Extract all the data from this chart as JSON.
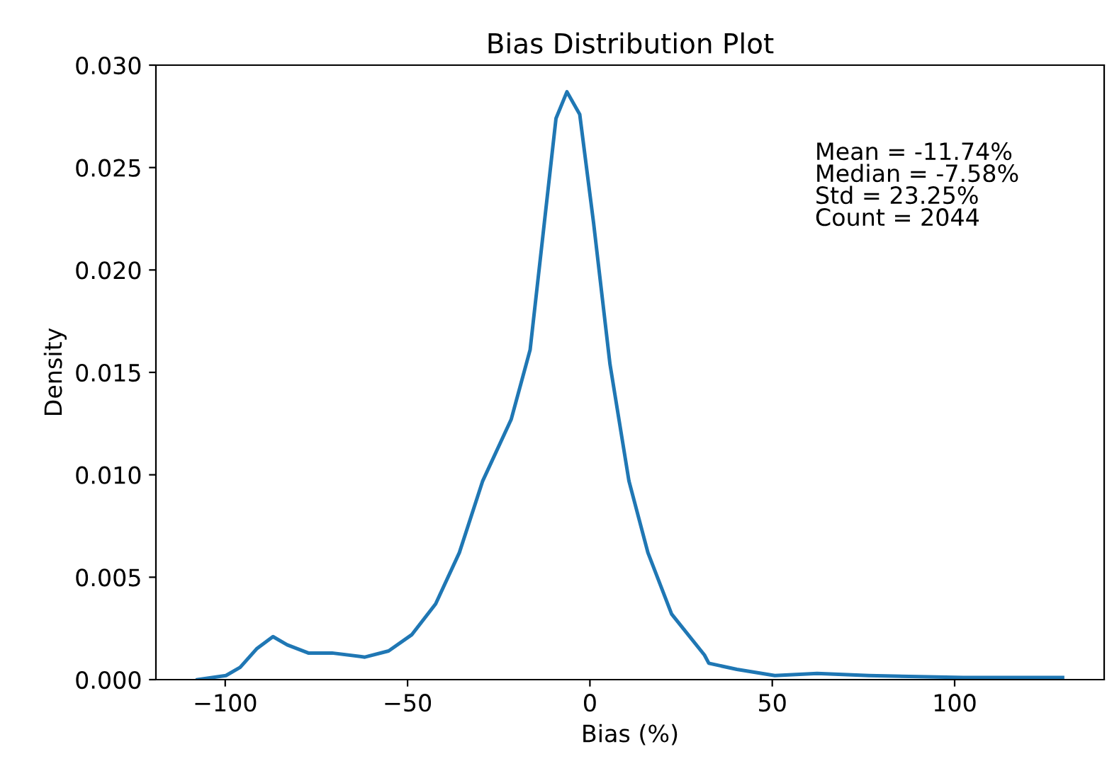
{
  "chart_data": {
    "type": "line",
    "title": "Bias Distribution Plot",
    "xlabel": "Bias (%)",
    "ylabel": "Density",
    "annotations": [
      "Mean = -11.74%\nMedian = -7.58%\nStd = 23.25%\nCount = 2044"
    ],
    "xlim": [
      -119,
      141
    ],
    "xticks": [
      {
        "value": -100,
        "label": "−100"
      },
      {
        "value": -50,
        "label": "−50"
      },
      0,
      50,
      100
    ],
    "ylim": [
      0,
      0.03
    ],
    "yticks": [
      {
        "value": 0,
        "label": "0.000"
      },
      {
        "value": 0.005,
        "label": "0.005"
      },
      {
        "value": 0.01,
        "label": "0.010"
      },
      {
        "value": 0.015,
        "label": "0.015"
      },
      {
        "value": 0.02,
        "label": "0.020"
      },
      {
        "value": 0.025,
        "label": "0.025"
      },
      {
        "value": 0.03,
        "label": "0.030"
      }
    ],
    "grid": false,
    "legend": false,
    "series": [
      {
        "color": "#1f77b4",
        "x": [
          -107.6,
          -99.8,
          -95.9,
          -91.4,
          -86.9,
          -83.0,
          -77.2,
          -70.7,
          -61.7,
          -55.2,
          -48.8,
          -42.3,
          -35.8,
          -29.4,
          -21.6,
          -16.4,
          -12.5,
          -9.3,
          -6.3,
          -2.8,
          1.0,
          5.5,
          10.7,
          15.9,
          22.4,
          31.4,
          32.6,
          40.3,
          50.7,
          62.3,
          76.5,
          102.4,
          129.6
        ],
        "values": [
          0.0,
          0.0002,
          0.0006,
          0.0015,
          0.0021,
          0.0017,
          0.0013,
          0.0013,
          0.0011,
          0.0014,
          0.0022,
          0.0037,
          0.0062,
          0.0097,
          0.0127,
          0.0161,
          0.0223,
          0.0274,
          0.0287,
          0.0276,
          0.0223,
          0.0154,
          0.0097,
          0.0062,
          0.0032,
          0.0012,
          0.0008,
          0.0005,
          0.0002,
          0.0003,
          0.0002,
          0.0001,
          0.0001
        ]
      }
    ]
  }
}
